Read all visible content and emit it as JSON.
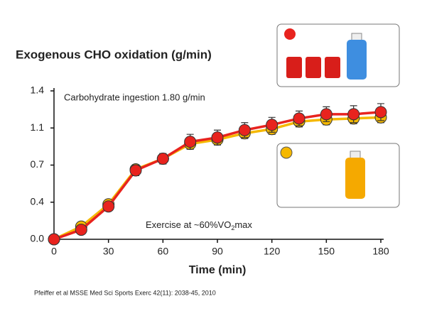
{
  "chart_data": {
    "type": "line",
    "title": "Exogenous CHO oxidation (g/min)",
    "annotations": [
      "Carbohydrate ingestion 1.80 g/min",
      "Exercise at ~60%VO",
      "2",
      "max"
    ],
    "x_label": "Time (min)",
    "source": "Pfeiffer et al MSSE Med Sci Sports Exerc 42(11): 2038-45, 2010",
    "x": [
      0,
      15,
      30,
      45,
      60,
      75,
      90,
      105,
      120,
      135,
      150,
      165,
      180
    ],
    "xlim": [
      0,
      180
    ],
    "xticks": [
      0,
      30,
      60,
      90,
      120,
      150,
      180
    ],
    "ylim": [
      0,
      1.4
    ],
    "yticks": [
      {
        "value": 0,
        "label": "0.0"
      },
      {
        "value": 0.35,
        "label": "0.4"
      },
      0.7,
      {
        "value": 1.05,
        "label": "1.1"
      },
      1.4
    ],
    "series": [
      {
        "color": "#f5b800",
        "values": [
          0,
          0.12,
          0.33,
          0.66,
          0.76,
          0.9,
          0.94,
          1.0,
          1.04,
          1.11,
          1.13,
          1.14,
          1.15
        ],
        "errors": [
          0,
          0.02,
          0.03,
          0.04,
          0.04,
          0.05,
          0.05,
          0.05,
          0.05,
          0.05,
          0.05,
          0.05,
          0.05
        ]
      },
      {
        "color": "#e8231e",
        "values": [
          0,
          0.09,
          0.31,
          0.65,
          0.76,
          0.92,
          0.96,
          1.03,
          1.08,
          1.14,
          1.18,
          1.18,
          1.2
        ],
        "errors": [
          0,
          0.03,
          0.04,
          0.05,
          0.05,
          0.07,
          0.07,
          0.07,
          0.07,
          0.07,
          0.07,
          0.08,
          0.08
        ]
      }
    ]
  }
}
